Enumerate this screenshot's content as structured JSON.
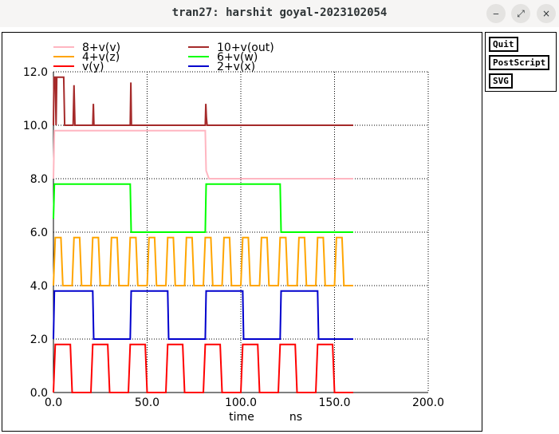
{
  "window": {
    "title": "tran27: harshit goyal-2023102054",
    "buttons": [
      {
        "name": "minimize",
        "glyph": "‒"
      },
      {
        "name": "maximize",
        "glyph": "⤢"
      },
      {
        "name": "close",
        "glyph": "×"
      }
    ]
  },
  "side_buttons": [
    {
      "name": "quit",
      "label": "Quit"
    },
    {
      "name": "postscript",
      "label": "PostScript"
    },
    {
      "name": "svg",
      "label": "SVG"
    }
  ],
  "chart_data": {
    "type": "line",
    "xlabel": "time",
    "xunit": "ns",
    "xlim": [
      0,
      200
    ],
    "ylim": [
      0,
      12
    ],
    "xticks": [
      0,
      50,
      100,
      150,
      200
    ],
    "xtick_labels": [
      "0.0",
      "50.0",
      "100.0",
      "150.0",
      "200.0"
    ],
    "yticks": [
      0,
      2,
      4,
      6,
      8,
      10,
      12
    ],
    "ytick_labels": [
      "0.0",
      "2.0",
      "4.0",
      "6.0",
      "8.0",
      "10.0",
      "12.0"
    ],
    "grid": true,
    "legend_position": "top",
    "series": [
      {
        "name": "8+v(v)",
        "color": "#ffb6c1",
        "points": [
          [
            0,
            8.0
          ],
          [
            0.5,
            9.8
          ],
          [
            81,
            9.8
          ],
          [
            81.5,
            8.3
          ],
          [
            83,
            8.0
          ],
          [
            160,
            8.0
          ]
        ]
      },
      {
        "name": "10+v(out)",
        "color": "#a52a2a",
        "points": [
          [
            0,
            10.0
          ],
          [
            0.3,
            11.8
          ],
          [
            1,
            11.8
          ],
          [
            1.4,
            10.0
          ],
          [
            1.8,
            11.8
          ],
          [
            5.5,
            11.8
          ],
          [
            6,
            10.0
          ],
          [
            10.5,
            10.0
          ],
          [
            11,
            11.5
          ],
          [
            11.5,
            10.0
          ],
          [
            21,
            10.0
          ],
          [
            21.3,
            10.8
          ],
          [
            21.6,
            10.0
          ],
          [
            41,
            10.0
          ],
          [
            41.3,
            11.6
          ],
          [
            41.6,
            10.0
          ],
          [
            81,
            10.0
          ],
          [
            81.3,
            10.8
          ],
          [
            81.6,
            10.3
          ],
          [
            82,
            10.0
          ],
          [
            160,
            10.0
          ]
        ]
      },
      {
        "name": "4+v(z)",
        "color": "#ffa500",
        "period": 10,
        "high": 5.8,
        "low": 4.0,
        "rise": 1,
        "fall": 1,
        "width": 3,
        "start": 0,
        "end": 160
      },
      {
        "name": "6+v(w)",
        "color": "#00ff00",
        "points": [
          [
            0,
            6.5
          ],
          [
            0.5,
            7.8
          ],
          [
            41,
            7.8
          ],
          [
            41.5,
            6.0
          ],
          [
            81,
            6.0
          ],
          [
            81.5,
            7.8
          ],
          [
            121,
            7.8
          ],
          [
            121.5,
            6.0
          ],
          [
            160,
            6.0
          ]
        ]
      },
      {
        "name": "v(y)",
        "color": "#ff0000",
        "period": 20,
        "high": 1.8,
        "low": 0.0,
        "rise": 1,
        "fall": 1,
        "width": 8,
        "start": 0,
        "end": 160
      },
      {
        "name": "2+v(x)",
        "color": "#0000cd",
        "points": [
          [
            0,
            2.0
          ],
          [
            0.5,
            3.8
          ],
          [
            21,
            3.8
          ],
          [
            21.5,
            2.0
          ],
          [
            41,
            2.0
          ],
          [
            41.5,
            3.8
          ],
          [
            61,
            3.8
          ],
          [
            61.5,
            2.0
          ],
          [
            81,
            2.0
          ],
          [
            81.5,
            3.8
          ],
          [
            101,
            3.8
          ],
          [
            101.5,
            2.0
          ],
          [
            121,
            2.0
          ],
          [
            121.5,
            3.8
          ],
          [
            141,
            3.8
          ],
          [
            141.5,
            2.0
          ],
          [
            160,
            2.0
          ]
        ]
      }
    ]
  }
}
